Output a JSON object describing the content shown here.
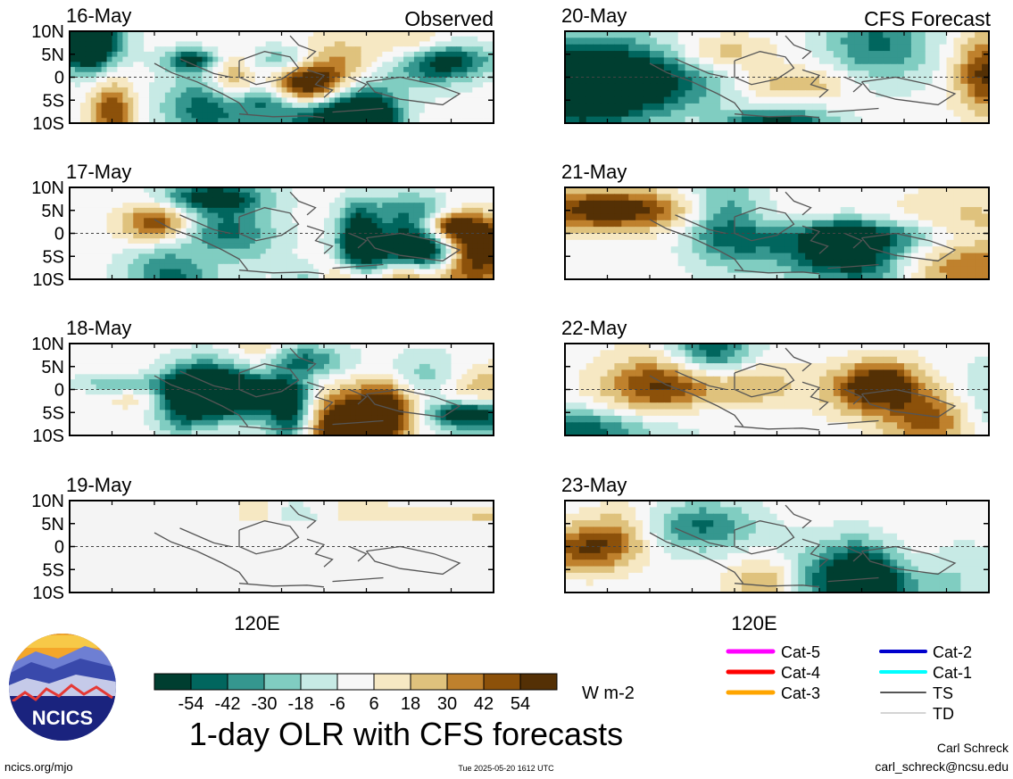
{
  "panels_left_header": "Observed",
  "panels_right_header": "CFS Forecast",
  "lat_labels": [
    "10N",
    "5N",
    "0",
    "5S",
    "10S"
  ],
  "lon_label": "120E",
  "panels": [
    {
      "date": "16-May",
      "kind": "observed",
      "seed": 11
    },
    {
      "date": "17-May",
      "kind": "observed",
      "seed": 23
    },
    {
      "date": "18-May",
      "kind": "observed",
      "seed": 37
    },
    {
      "date": "19-May",
      "kind": "empty",
      "seed": 41
    },
    {
      "date": "20-May",
      "kind": "forecast",
      "seed": 53
    },
    {
      "date": "21-May",
      "kind": "forecast",
      "seed": 67
    },
    {
      "date": "22-May",
      "kind": "forecast",
      "seed": 79
    },
    {
      "date": "23-May",
      "kind": "forecast",
      "seed": 97
    }
  ],
  "colorbar": {
    "colors": [
      "#003e30",
      "#01665e",
      "#35978f",
      "#80cdc1",
      "#c7eae5",
      "#f7f7f7",
      "#f6e8c3",
      "#dfc27d",
      "#bf812d",
      "#8c510a",
      "#543005"
    ],
    "tick_labels": [
      "-54",
      "-42",
      "-30",
      "-18",
      "-6",
      "6",
      "18",
      "30",
      "42",
      "54"
    ],
    "units": "W m-2"
  },
  "legend": {
    "col1": [
      {
        "label": "Cat-5",
        "color": "#ff00ff"
      },
      {
        "label": "Cat-4",
        "color": "#ff0000"
      },
      {
        "label": "Cat-3",
        "color": "#ffa500"
      }
    ],
    "col2": [
      {
        "label": "Cat-2",
        "color": "#0000cd"
      },
      {
        "label": "Cat-1",
        "color": "#00ffff"
      },
      {
        "label": "TS",
        "color": "#555555"
      },
      {
        "label": "TD",
        "color": "#aaaaaa"
      }
    ]
  },
  "title": "1-day OLR with CFS forecasts",
  "logo_text": "NCICS",
  "footer": {
    "left": "ncics.org/mjo",
    "center": "Tue 2025-05-20 1612 UTC",
    "author": "Carl Schreck",
    "email": "carl_schreck@ncsu.edu"
  }
}
